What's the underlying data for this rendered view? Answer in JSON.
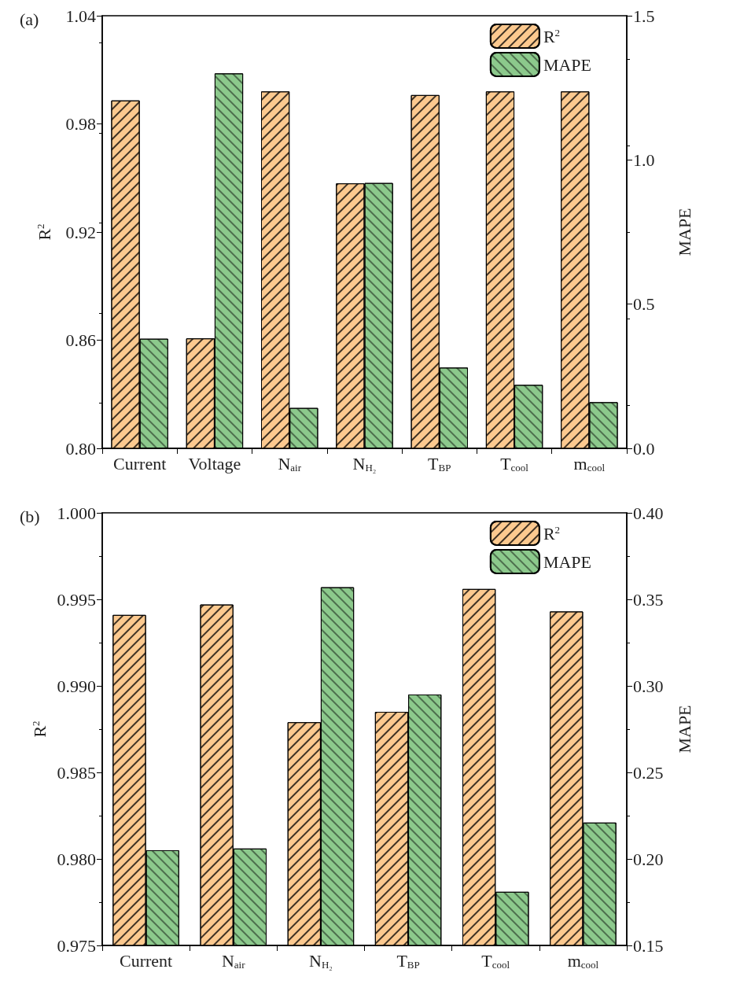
{
  "chart_data": [
    {
      "type": "bar",
      "title": "(a)",
      "ylabel": "R$^{2}$",
      "y2label": "MAPE",
      "categories": [
        "Current",
        "Voltage",
        "N$_{air}$",
        "N$_{H₂}$",
        "T$_{BP}$",
        "T$_{cool}$",
        "m$_{cool}$"
      ],
      "series": [
        {
          "name": "R$^{2}$",
          "color": "#fcc98f",
          "values": [
            0.993,
            0.861,
            0.998,
            0.947,
            0.996,
            0.998,
            0.998
          ]
        },
        {
          "name": "MAPE",
          "color": "#8cc98c",
          "axis": "y2",
          "values": [
            0.38,
            1.3,
            0.14,
            0.92,
            0.28,
            0.22,
            0.16
          ]
        }
      ],
      "ylim": [
        0.8,
        1.04
      ],
      "yticks": [
        {
          "value": 0.8,
          "label": "0.80"
        },
        0.86,
        0.92,
        0.98,
        1.04
      ],
      "y2lim": [
        0,
        1.5
      ],
      "y2ticks": [
        {
          "value": 0,
          "label": "0.0"
        },
        0.5,
        {
          "value": 1.0,
          "label": "1.0"
        },
        1.5
      ],
      "legend": "top right",
      "grid": false
    },
    {
      "type": "bar",
      "title": "(b)",
      "ylabel": "R$^{2}$",
      "y2label": "MAPE",
      "categories": [
        "Current",
        "N$_{air}$",
        "N$_{H₂}$",
        "T$_{BP}$",
        "T$_{cool}$",
        "m$_{cool}$"
      ],
      "series": [
        {
          "name": "R$^{2}$",
          "color": "#fcc98f",
          "values": [
            0.9941,
            0.9947,
            0.9879,
            0.9885,
            0.9956,
            0.9943
          ]
        },
        {
          "name": "MAPE",
          "color": "#8cc98c",
          "axis": "y2",
          "values": [
            0.205,
            0.206,
            0.357,
            0.295,
            0.181,
            0.221
          ]
        }
      ],
      "ylim": [
        0.975,
        1.0
      ],
      "yticks": [
        0.975,
        {
          "value": 0.98,
          "label": "0.980"
        },
        0.985,
        {
          "value": 0.99,
          "label": "0.990"
        },
        0.995,
        {
          "value": 1.0,
          "label": "1.000"
        }
      ],
      "y2lim": [
        0.15,
        0.4
      ],
      "y2ticks": [
        0.15,
        {
          "value": 0.2,
          "label": "0.20"
        },
        0.25,
        {
          "value": 0.3,
          "label": "0.30"
        },
        0.35,
        {
          "value": 0.4,
          "label": "0.40"
        }
      ],
      "legend": "top right",
      "grid": false
    }
  ]
}
